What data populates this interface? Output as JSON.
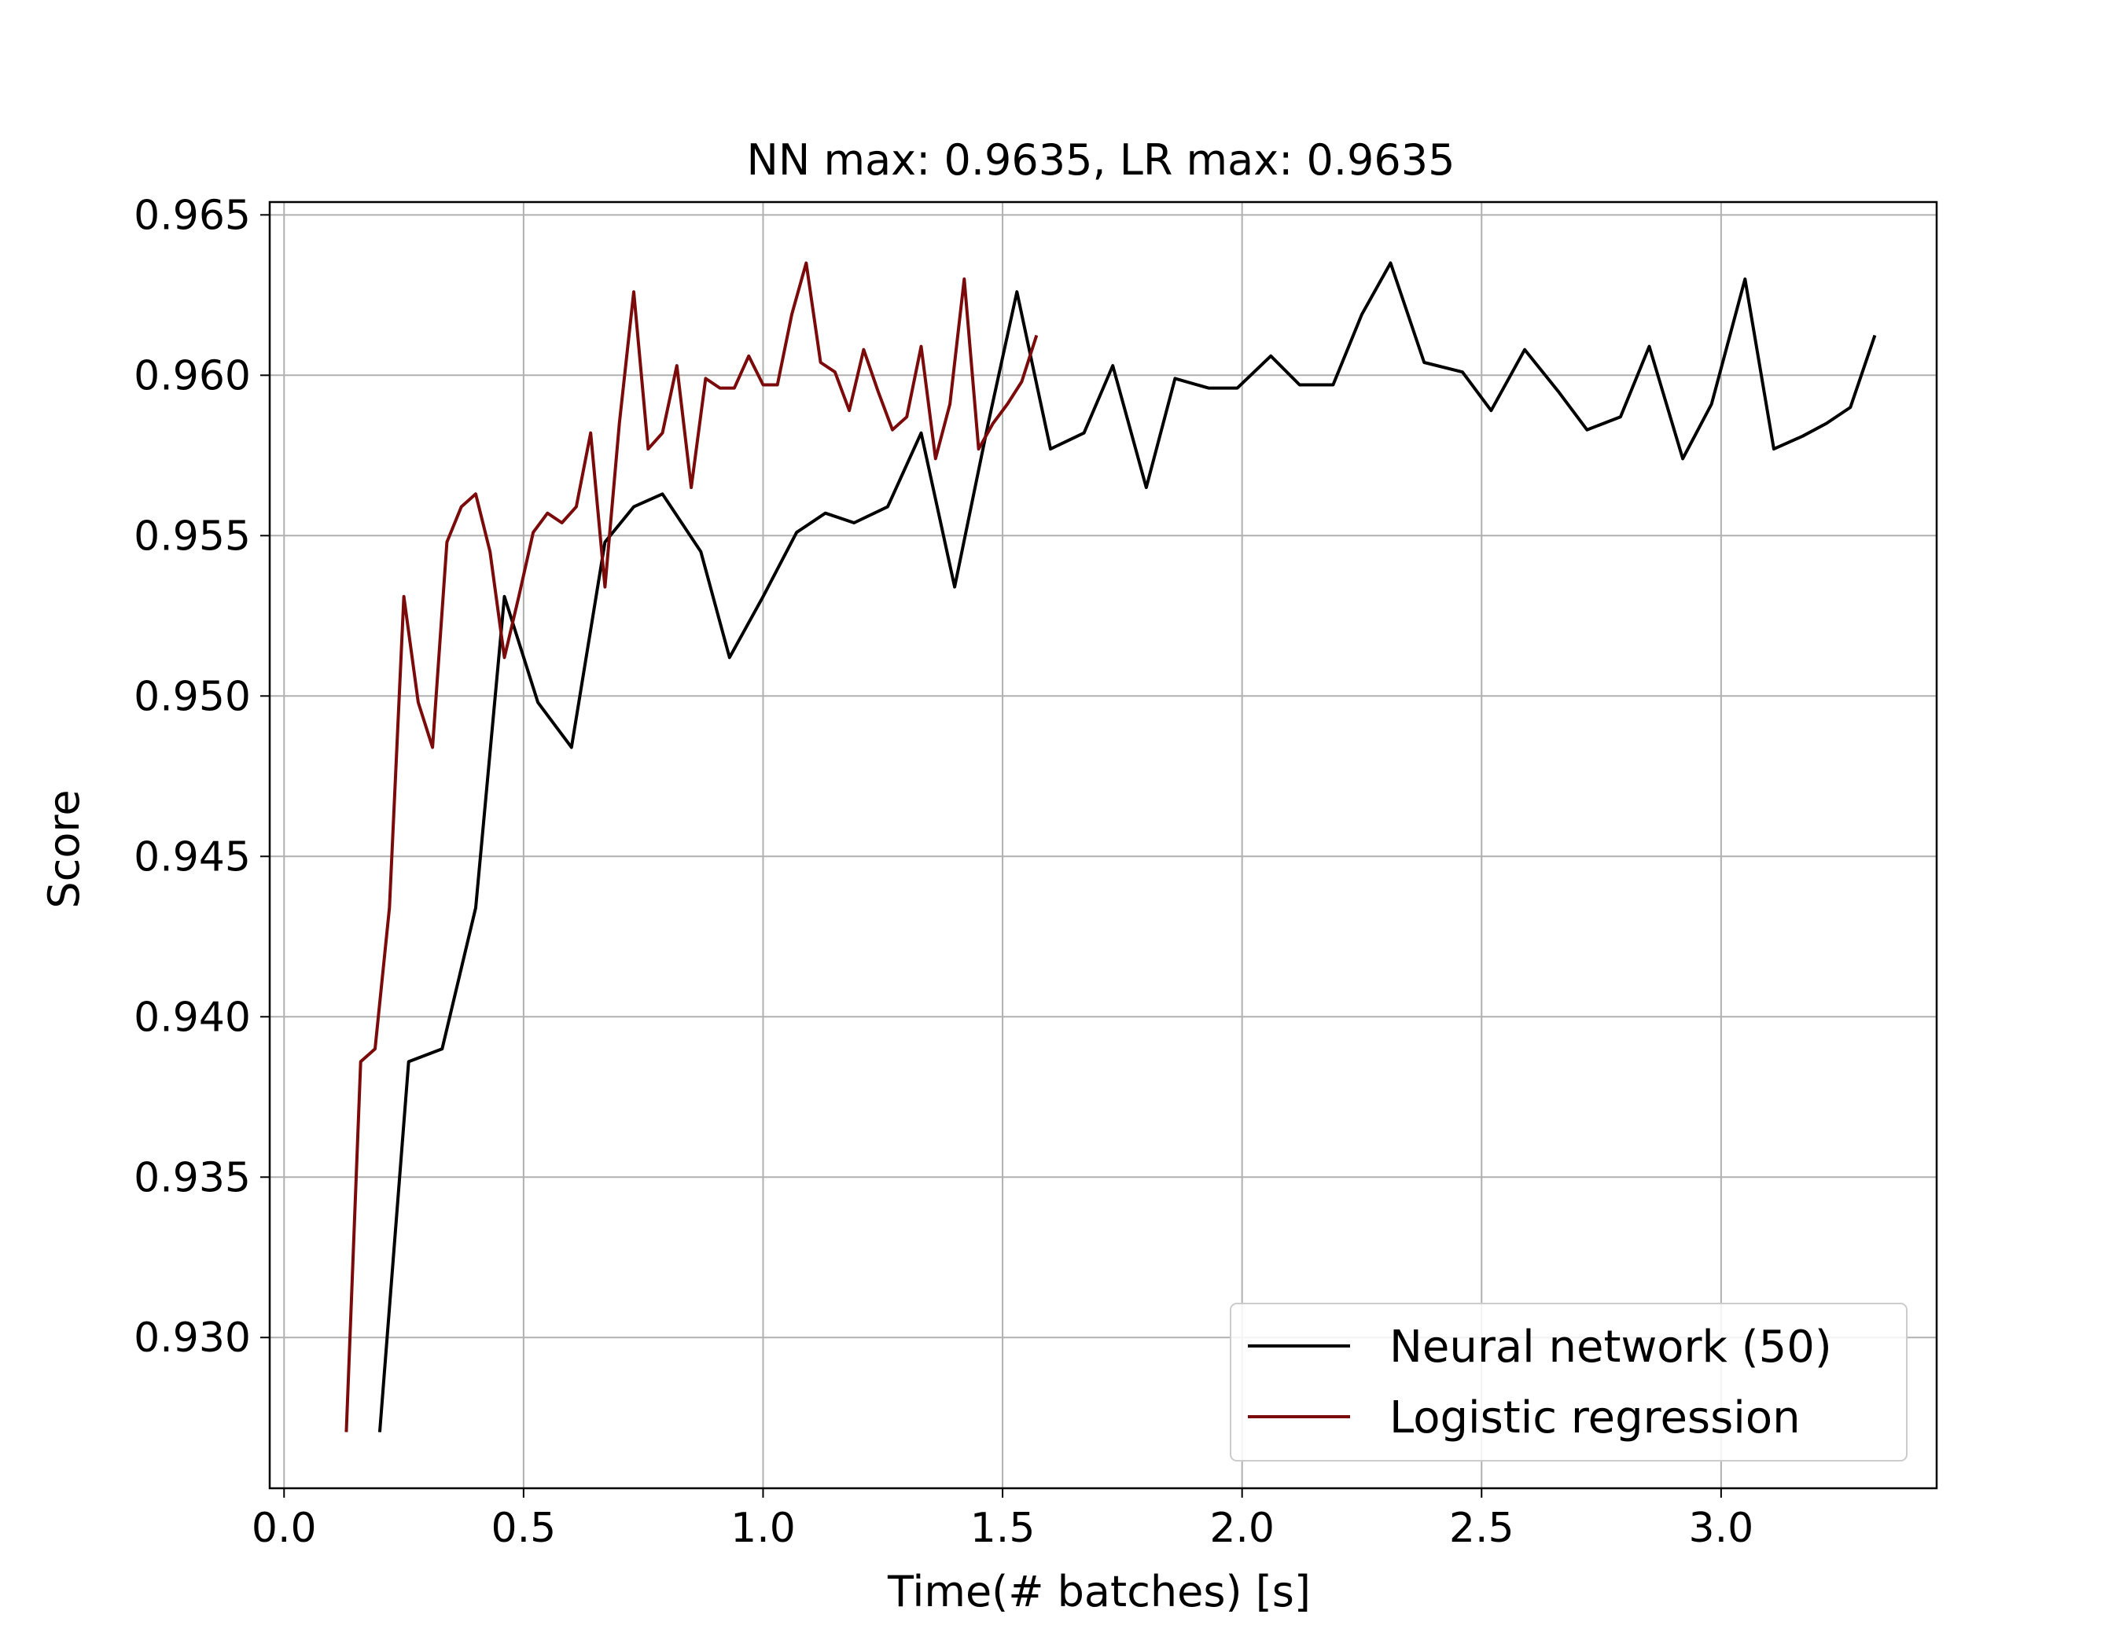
{
  "chart_data": {
    "type": "line",
    "title": "NN max: 0.9635, LR max: 0.9635",
    "xlabel": "Time(# batches) [s]",
    "ylabel": "Score",
    "xlim": [
      -0.03,
      3.45
    ],
    "ylim": [
      0.9253,
      0.9654
    ],
    "xticks": [
      0.0,
      0.5,
      1.0,
      1.5,
      2.0,
      2.5,
      3.0
    ],
    "xtick_labels": [
      "0.0",
      "0.5",
      "1.0",
      "1.5",
      "2.0",
      "2.5",
      "3.0"
    ],
    "yticks": [
      0.93,
      0.935,
      0.94,
      0.945,
      0.95,
      0.955,
      0.96,
      0.965
    ],
    "ytick_labels": [
      "0.930",
      "0.935",
      "0.940",
      "0.945",
      "0.950",
      "0.955",
      "0.960",
      "0.965"
    ],
    "grid": true,
    "legend_position": "bottom-right",
    "series": [
      {
        "name": "Neural network (50)",
        "color": "#000000",
        "x": [
          0.2,
          0.26,
          0.33,
          0.4,
          0.46,
          0.53,
          0.6,
          0.67,
          0.73,
          0.79,
          0.87,
          0.93,
          1.0,
          1.07,
          1.13,
          1.19,
          1.26,
          1.33,
          1.4,
          1.47,
          1.53,
          1.6,
          1.67,
          1.73,
          1.8,
          1.86,
          1.93,
          1.99,
          2.06,
          2.12,
          2.19,
          2.25,
          2.31,
          2.38,
          2.46,
          2.52,
          2.59,
          2.66,
          2.72,
          2.79,
          2.85,
          2.92,
          2.98,
          3.05,
          3.11,
          3.17,
          3.22,
          3.27,
          3.32
        ],
        "values": [
          0.9271,
          0.9386,
          0.939,
          0.9434,
          0.9531,
          0.9498,
          0.9484,
          0.9548,
          0.9559,
          0.9563,
          0.9545,
          0.9512,
          0.9531,
          0.9551,
          0.9557,
          0.9554,
          0.9559,
          0.9582,
          0.9534,
          0.9585,
          0.9626,
          0.9577,
          0.9582,
          0.9603,
          0.9565,
          0.9599,
          0.9596,
          0.9596,
          0.9606,
          0.9597,
          0.9597,
          0.9619,
          0.9635,
          0.9604,
          0.9601,
          0.9589,
          0.9608,
          0.9595,
          0.9583,
          0.9587,
          0.9609,
          0.9574,
          0.9591,
          0.963,
          0.9577,
          0.9581,
          0.9585,
          0.959,
          0.9612
        ]
      },
      {
        "name": "Logistic regression",
        "color": "#7b0a0a",
        "x": [
          0.13,
          0.16,
          0.19,
          0.22,
          0.25,
          0.28,
          0.31,
          0.34,
          0.37,
          0.4,
          0.43,
          0.46,
          0.49,
          0.52,
          0.55,
          0.58,
          0.61,
          0.64,
          0.67,
          0.7,
          0.73,
          0.76,
          0.79,
          0.82,
          0.85,
          0.88,
          0.91,
          0.94,
          0.97,
          1.0,
          1.03,
          1.06,
          1.09,
          1.12,
          1.15,
          1.18,
          1.21,
          1.24,
          1.27,
          1.3,
          1.33,
          1.36,
          1.39,
          1.42,
          1.45,
          1.48,
          1.51,
          1.54,
          1.57
        ],
        "values": [
          0.9271,
          0.9386,
          0.939,
          0.9434,
          0.9531,
          0.9498,
          0.9484,
          0.9548,
          0.9559,
          0.9563,
          0.9545,
          0.9512,
          0.9531,
          0.9551,
          0.9557,
          0.9554,
          0.9559,
          0.9582,
          0.9534,
          0.9585,
          0.9626,
          0.9577,
          0.9582,
          0.9603,
          0.9565,
          0.9599,
          0.9596,
          0.9596,
          0.9606,
          0.9597,
          0.9597,
          0.9619,
          0.9635,
          0.9604,
          0.9601,
          0.9589,
          0.9608,
          0.9595,
          0.9583,
          0.9587,
          0.9609,
          0.9574,
          0.9591,
          0.963,
          0.9577,
          0.9585,
          0.9591,
          0.9598,
          0.9612
        ]
      }
    ]
  }
}
